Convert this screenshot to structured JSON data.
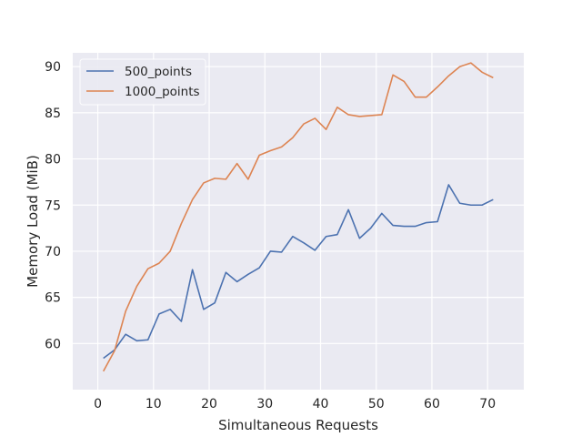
{
  "chart_data": {
    "type": "line",
    "title": "",
    "xlabel": "Simultaneous Requests",
    "ylabel": "Memory Load (MiB)",
    "xlim": [
      -4.5,
      76.5
    ],
    "ylim": [
      55,
      91.5
    ],
    "xticks": [
      0,
      10,
      20,
      30,
      40,
      50,
      60,
      70
    ],
    "yticks": [
      60,
      65,
      70,
      75,
      80,
      85,
      90
    ],
    "grid": true,
    "legend_position": "top-left",
    "x": [
      1,
      3,
      5,
      7,
      9,
      11,
      13,
      15,
      17,
      19,
      21,
      23,
      25,
      27,
      29,
      31,
      33,
      35,
      37,
      39,
      41,
      43,
      45,
      47,
      49,
      51,
      53,
      55,
      57,
      59,
      61,
      63,
      65,
      67,
      69,
      71
    ],
    "series": [
      {
        "name": "500_points",
        "color": "#4c72b0",
        "values": [
          58.4,
          59.3,
          61.0,
          60.3,
          60.4,
          63.2,
          63.7,
          62.4,
          68.0,
          63.7,
          64.4,
          67.7,
          66.7,
          67.5,
          68.2,
          70.0,
          69.9,
          71.6,
          70.9,
          70.1,
          71.6,
          71.8,
          74.5,
          71.4,
          72.5,
          74.1,
          72.8,
          72.7,
          72.7,
          73.1,
          73.2,
          77.2,
          75.2,
          75.0,
          75.0,
          75.6
        ]
      },
      {
        "name": "1000_points",
        "color": "#dd8452",
        "values": [
          57.0,
          59.2,
          63.5,
          66.2,
          68.1,
          68.7,
          70.0,
          73.0,
          75.6,
          77.4,
          77.9,
          77.8,
          79.5,
          77.8,
          80.4,
          80.9,
          81.3,
          82.3,
          83.8,
          84.4,
          83.2,
          85.6,
          84.8,
          84.6,
          84.7,
          84.8,
          89.1,
          88.4,
          86.7,
          86.7,
          87.8,
          89.0,
          90.0,
          90.4,
          89.4,
          88.8
        ]
      }
    ]
  }
}
